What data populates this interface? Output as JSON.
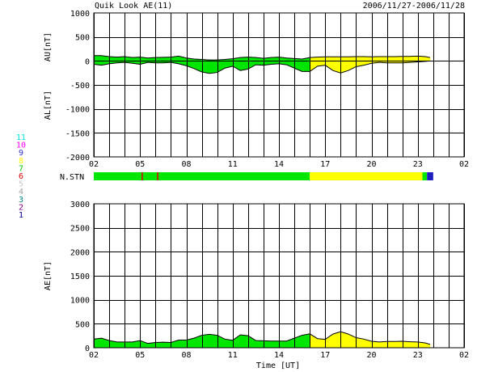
{
  "header": {
    "title": "Quik Look AE(11)",
    "date_range": "2006/11/27-2006/11/28"
  },
  "station_legend": {
    "items": [
      {
        "num": "11",
        "color": "#00e0e0"
      },
      {
        "num": "10",
        "color": "#ff00ff"
      },
      {
        "num": "9",
        "color": "#3030d0"
      },
      {
        "num": "8",
        "color": "#ffff00"
      },
      {
        "num": "7",
        "color": "#00c800"
      },
      {
        "num": "6",
        "color": "#e00000"
      },
      {
        "num": "5",
        "color": "#c8c8c8"
      },
      {
        "num": "4",
        "color": "#a0a0a0"
      },
      {
        "num": "3",
        "color": "#008080"
      },
      {
        "num": "2",
        "color": "#800080"
      },
      {
        "num": "1",
        "color": "#000090"
      }
    ]
  },
  "colors": {
    "green": "#00e600",
    "yellow": "#ffff00"
  },
  "chart_data": [
    {
      "type": "area",
      "name": "AU/AL",
      "ylabel_top": "AU[nT]",
      "ylabel_bottom": "AL[nT]",
      "ylim": [
        -2000,
        1000
      ],
      "yticks": [
        1000,
        500,
        0,
        -500,
        -1000,
        -1500,
        -2000
      ],
      "xticks": [
        "02",
        "05",
        "08",
        "11",
        "14",
        "17",
        "20",
        "23",
        "02"
      ],
      "x_hours": [
        2,
        2.5,
        3,
        3.5,
        4,
        4.5,
        5,
        5.5,
        6,
        6.5,
        7,
        7.5,
        8,
        8.5,
        9,
        9.5,
        10,
        10.5,
        11,
        11.5,
        12,
        12.5,
        13,
        13.5,
        14,
        14.5,
        15,
        15.5,
        16,
        16.5,
        17,
        17.5,
        18,
        18.5,
        19,
        19.5,
        20,
        20.5,
        21,
        21.5,
        22,
        22.5,
        23,
        23.5,
        23.8
      ],
      "au": [
        110,
        110,
        90,
        80,
        90,
        70,
        80,
        60,
        70,
        75,
        80,
        100,
        60,
        40,
        30,
        20,
        20,
        30,
        45,
        70,
        80,
        70,
        55,
        70,
        80,
        60,
        50,
        40,
        70,
        80,
        85,
        85,
        85,
        85,
        90,
        90,
        85,
        90,
        90,
        90,
        95,
        95,
        100,
        90,
        70
      ],
      "al": [
        -70,
        -90,
        -60,
        -40,
        -30,
        -50,
        -70,
        -30,
        -40,
        -40,
        -30,
        -60,
        -100,
        -160,
        -230,
        -260,
        -240,
        -150,
        -110,
        -200,
        -170,
        -80,
        -90,
        -70,
        -60,
        -80,
        -150,
        -220,
        -220,
        -110,
        -90,
        -200,
        -250,
        -200,
        -120,
        -90,
        -50,
        -30,
        -40,
        -40,
        -40,
        -30,
        -20,
        -10,
        0
      ],
      "station_color": [
        "green",
        "green",
        "green",
        "green",
        "green",
        "green",
        "green",
        "green",
        "green",
        "green",
        "green",
        "green",
        "green",
        "green",
        "green",
        "green",
        "green",
        "green",
        "green",
        "green",
        "green",
        "green",
        "green",
        "green",
        "green",
        "green",
        "green",
        "green",
        "yellow",
        "yellow",
        "yellow",
        "yellow",
        "yellow",
        "yellow",
        "yellow",
        "yellow",
        "yellow",
        "yellow",
        "yellow",
        "yellow",
        "yellow",
        "yellow",
        "yellow",
        "yellow",
        "yellow"
      ]
    },
    {
      "type": "area",
      "name": "AE",
      "ylabel": "AE[nT]",
      "ylim": [
        0,
        3000
      ],
      "yticks": [
        3000,
        2500,
        2000,
        1500,
        1000,
        500,
        0
      ],
      "xticks": [
        "02",
        "05",
        "08",
        "11",
        "14",
        "17",
        "20",
        "23",
        "02"
      ],
      "xlabel": "Time [UT]",
      "x_hours": [
        2,
        2.5,
        3,
        3.5,
        4,
        4.5,
        5,
        5.5,
        6,
        6.5,
        7,
        7.5,
        8,
        8.5,
        9,
        9.5,
        10,
        10.5,
        11,
        11.5,
        12,
        12.5,
        13,
        13.5,
        14,
        14.5,
        15,
        15.5,
        16,
        16.5,
        17,
        17.5,
        18,
        18.5,
        19,
        19.5,
        20,
        20.5,
        21,
        21.5,
        22,
        22.5,
        23,
        23.5,
        23.8
      ],
      "ae": [
        180,
        200,
        150,
        120,
        120,
        120,
        150,
        90,
        110,
        115,
        110,
        160,
        160,
        200,
        260,
        280,
        260,
        180,
        155,
        270,
        250,
        150,
        145,
        140,
        140,
        140,
        200,
        260,
        290,
        190,
        175,
        285,
        335,
        285,
        210,
        180,
        135,
        120,
        130,
        130,
        135,
        125,
        120,
        100,
        70
      ],
      "station_color": [
        "green",
        "green",
        "green",
        "green",
        "green",
        "green",
        "green",
        "green",
        "green",
        "green",
        "green",
        "green",
        "green",
        "green",
        "green",
        "green",
        "green",
        "green",
        "green",
        "green",
        "green",
        "green",
        "green",
        "green",
        "green",
        "green",
        "green",
        "green",
        "yellow",
        "yellow",
        "yellow",
        "yellow",
        "yellow",
        "yellow",
        "yellow",
        "yellow",
        "yellow",
        "yellow",
        "yellow",
        "yellow",
        "yellow",
        "yellow",
        "yellow",
        "yellow",
        "yellow"
      ]
    },
    {
      "type": "bar",
      "name": "station-count-strip",
      "label": "N.STN",
      "segments": [
        {
          "from": 2,
          "to": 16,
          "color": "green"
        },
        {
          "from": 16,
          "to": 23.3,
          "color": "yellow"
        },
        {
          "from": 23.3,
          "to": 23.6,
          "color": "green"
        },
        {
          "from": 23.6,
          "to": 24,
          "color": "blue"
        }
      ],
      "marks": [
        {
          "at": 5.1,
          "color": "red"
        },
        {
          "at": 6.1,
          "color": "red"
        }
      ]
    }
  ]
}
